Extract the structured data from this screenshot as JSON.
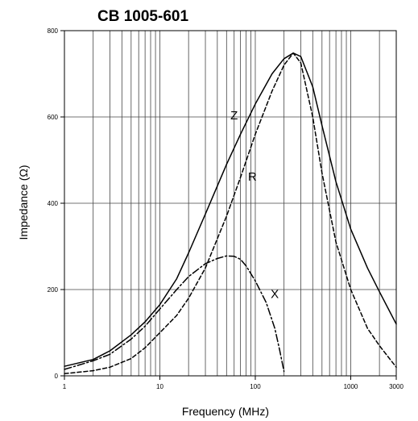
{
  "chart_data": {
    "type": "line",
    "title": "CB 1005-601",
    "xlabel": "Frequency (MHz)",
    "ylabel": "Impedance (Ω)",
    "x_scale": "log",
    "xlim": [
      1,
      3000
    ],
    "ylim": [
      0,
      800
    ],
    "x_ticks": [
      {
        "value": 1,
        "label": "1"
      },
      {
        "value": 10,
        "label": "10"
      },
      {
        "value": 100,
        "label": "100"
      },
      {
        "value": 1000,
        "label": "1000"
      },
      {
        "value": 3000,
        "label": "3000"
      }
    ],
    "y_ticks": [
      {
        "value": 0,
        "label": "0"
      },
      {
        "value": 200,
        "label": "200"
      },
      {
        "value": 400,
        "label": "400"
      },
      {
        "value": 600,
        "label": "600"
      },
      {
        "value": 800,
        "label": "800"
      }
    ],
    "grid": true,
    "series": [
      {
        "name": "Z",
        "style": "solid",
        "x": [
          1,
          2,
          3,
          5,
          7,
          10,
          15,
          20,
          30,
          50,
          70,
          100,
          150,
          200,
          250,
          300,
          400,
          500,
          700,
          1000,
          1500,
          2000,
          3000
        ],
        "y": [
          22,
          38,
          58,
          95,
          125,
          165,
          225,
          285,
          375,
          490,
          560,
          630,
          700,
          735,
          748,
          740,
          670,
          580,
          450,
          340,
          250,
          195,
          120
        ]
      },
      {
        "name": "R",
        "style": "dashed",
        "x": [
          1,
          2,
          3,
          5,
          7,
          10,
          15,
          20,
          30,
          50,
          70,
          100,
          150,
          200,
          250,
          300,
          400,
          500,
          700,
          1000,
          1500,
          2000,
          3000
        ],
        "y": [
          5,
          12,
          20,
          40,
          65,
          100,
          140,
          180,
          250,
          370,
          460,
          560,
          660,
          720,
          748,
          725,
          600,
          470,
          310,
          200,
          110,
          70,
          20
        ]
      },
      {
        "name": "X",
        "style": "dash-dot",
        "x": [
          1,
          2,
          3,
          5,
          7,
          10,
          15,
          20,
          30,
          40,
          50,
          60,
          70,
          80,
          100,
          130,
          160,
          180,
          200
        ],
        "y": [
          15,
          35,
          50,
          85,
          115,
          155,
          200,
          230,
          260,
          272,
          278,
          277,
          270,
          255,
          220,
          170,
          110,
          60,
          10
        ]
      }
    ],
    "annotations": [
      {
        "text": "Z",
        "series": "Z",
        "x": 60,
        "y": 594
      },
      {
        "text": "R",
        "series": "R",
        "x": 93,
        "y": 452
      },
      {
        "text": "X",
        "series": "X",
        "x": 160,
        "y": 180
      }
    ]
  }
}
